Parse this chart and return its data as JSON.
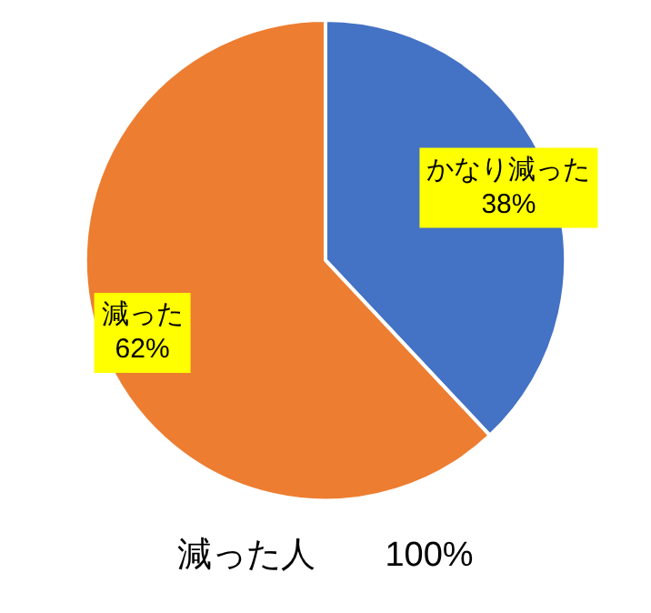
{
  "chart_data": {
    "type": "pie",
    "title": "減った人　　100%",
    "categories": [
      "かなり減った",
      "減った"
    ],
    "values": [
      38,
      62
    ],
    "colors": [
      "#4472c4",
      "#ed7d31"
    ],
    "value_labels": [
      "38%",
      "62%"
    ],
    "legend": false
  }
}
